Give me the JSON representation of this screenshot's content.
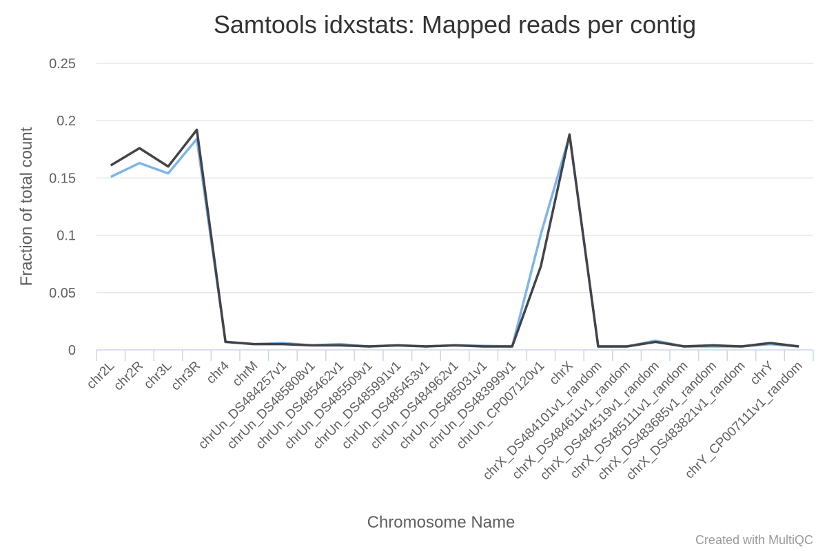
{
  "chart_data": {
    "type": "line",
    "title": "Samtools idxstats: Mapped reads per contig",
    "x_label": "Chromosome Name",
    "y_label": "Fraction of total count",
    "credit": "Created with MultiQC",
    "categories": [
      "chr2L",
      "chr2R",
      "chr3L",
      "chr3R",
      "chr4",
      "chrM",
      "chrUn_DS484257v1",
      "chrUn_DS485808v1",
      "chrUn_DS485462v1",
      "chrUn_DS485509v1",
      "chrUn_DS485991v1",
      "chrUn_DS485453v1",
      "chrUn_DS484962v1",
      "chrUn_DS485031v1",
      "chrUn_DS483999v1",
      "chrUn_CP007120v1",
      "chrX",
      "chrX_DS484101v1_random",
      "chrX_DS484611v1_random",
      "chrX_DS484519v1_random",
      "chrX_DS485111v1_random",
      "chrX_DS483685v1_random",
      "chrX_DS483821v1_random",
      "chrY",
      "chrY_CP007111v1_random"
    ],
    "series": [
      {
        "color": "#7cb5ec",
        "values": [
          0.151,
          0.163,
          0.154,
          0.184,
          0.007,
          0.005,
          0.006,
          0.004,
          0.005,
          0.003,
          0.004,
          0.003,
          0.004,
          0.0035,
          0.003,
          0.101,
          0.187,
          0.003,
          0.003,
          0.008,
          0.003,
          0.003,
          0.003,
          0.005,
          0.003
        ]
      },
      {
        "color": "#434348",
        "values": [
          0.161,
          0.176,
          0.16,
          0.192,
          0.007,
          0.005,
          0.005,
          0.004,
          0.004,
          0.003,
          0.004,
          0.003,
          0.004,
          0.003,
          0.003,
          0.073,
          0.188,
          0.003,
          0.003,
          0.007,
          0.003,
          0.004,
          0.003,
          0.006,
          0.003
        ]
      }
    ],
    "ylim": [
      0,
      0.25
    ],
    "yticks": [
      0,
      0.05,
      0.1,
      0.15,
      0.2,
      0.25
    ],
    "grid": true
  }
}
